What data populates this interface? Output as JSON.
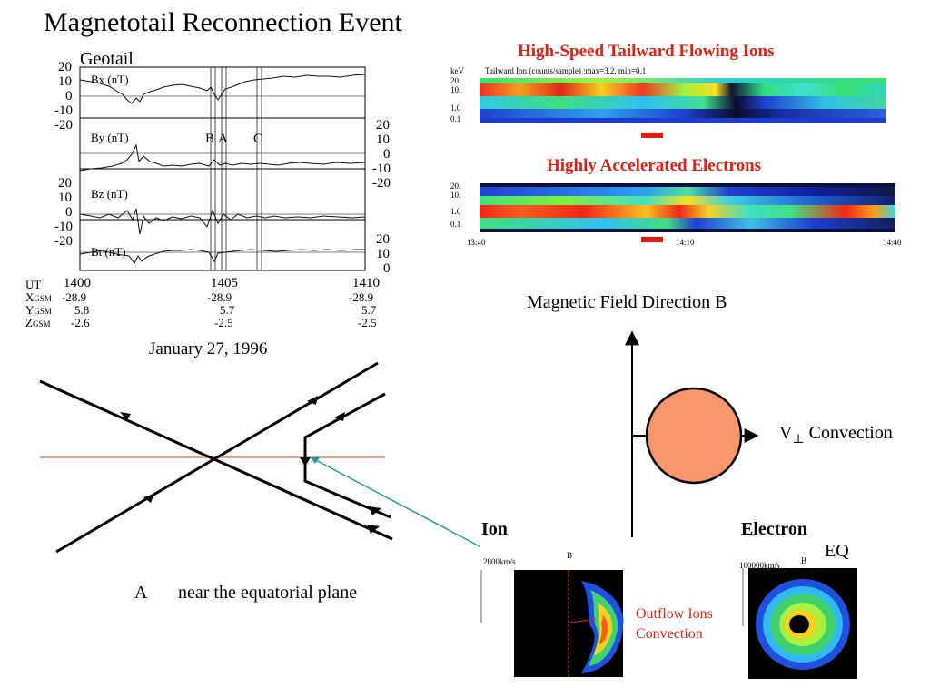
{
  "title": "Magnetotail Reconnection Event",
  "geotail": {
    "label": "Geotail",
    "panels": [
      "Bx (nT)",
      "By (nT)",
      "Bz (nT)",
      "Bt (nT)"
    ],
    "markers": [
      "B",
      "A",
      "C"
    ],
    "ut_label": "UT",
    "ut": [
      "1400",
      "1405",
      "1410"
    ],
    "rows": [
      {
        "label": "X",
        "sub": "GSM",
        "values": [
          "-28.9",
          "-28.9",
          "-28.9"
        ]
      },
      {
        "label": "Y",
        "sub": "GSM",
        "values": [
          "5.8",
          "5.7",
          "5.7"
        ]
      },
      {
        "label": "Z",
        "sub": "GSM",
        "values": [
          "-2.6",
          "-2.5",
          "-2.5"
        ]
      }
    ],
    "date": "January 27, 1996",
    "left_ticks_a": [
      "20",
      "10",
      "0",
      "-10",
      "-20"
    ],
    "right_ticks_b": [
      "20",
      "10",
      "0",
      "-10",
      "-20"
    ],
    "left_ticks_c": [
      "20",
      "10",
      "0",
      "-10",
      "-20"
    ],
    "right_ticks_d": [
      "20",
      "10",
      "0"
    ]
  },
  "ion_spectrogram": {
    "title": "High-Speed Tailward Flowing Ions",
    "unit": "keV",
    "caption": "Tailward Ion  (counts/sample) :max=3.2, min=0.1",
    "yticks": [
      "20.",
      "10.",
      "1.0",
      "0.1"
    ]
  },
  "electron_spectrogram": {
    "title": "Highly Accelerated Electrons",
    "yticks": [
      "20.",
      "10.",
      "1.0",
      "0.1"
    ],
    "xticks": [
      "13:40",
      "14:10",
      "14:40"
    ]
  },
  "field_diagram": {
    "field_label": "Magnetic Field Direction   B",
    "conv_label": "Convection",
    "v_label": "V",
    "perp": "⊥",
    "circle_color": "#f7966b"
  },
  "xline_caption": {
    "letter": "A",
    "text": "near the equatorial plane"
  },
  "ion_panel": {
    "label": "Ion",
    "scale": "2800km/s",
    "b_label": "B",
    "note1": "Outflow Ions",
    "note2": "Convection"
  },
  "electron_panel": {
    "label": "Electron",
    "eq": "EQ",
    "scale": "100000km/s",
    "b_label": "B"
  }
}
